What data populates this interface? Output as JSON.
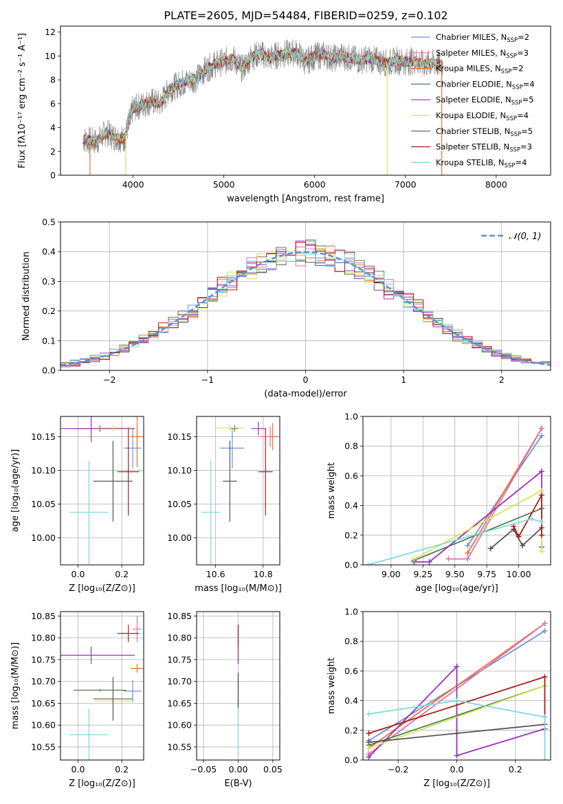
{
  "figure": {
    "title": "PLATE=2605, MJD=54484, FIBERID=0259, z=0.102"
  },
  "colors": {
    "Chabrier MILES": "#6f8fdc",
    "Salpeter MILES": "#e06fb0",
    "Kroupa MILES": "#e8722b",
    "Chabrier ELODIE": "#4f7f4f",
    "Salpeter ELODIE": "#9b30b8",
    "Kroupa ELODIE": "#d7e35a",
    "Chabrier STELIB": "#555555",
    "Salpeter STELIB": "#b01a1a",
    "Kroupa STELIB": "#7fd9dc"
  },
  "chart_data": [
    {
      "id": "spectrum",
      "type": "line",
      "xlabel": "wavelength [Angstrom, rest frame]",
      "ylabel": "Flux [fλ10⁻¹⁷ erg cm⁻² s⁻¹ A⁻¹]",
      "xlim": [
        3200,
        8600
      ],
      "ylim": [
        0,
        12.5
      ],
      "xticks": [
        4000,
        5000,
        6000,
        7000,
        8000
      ],
      "yticks": [
        0,
        2,
        4,
        6,
        8,
        10,
        12
      ],
      "legend_position": "right",
      "legend": [
        {
          "label": "Chabrier MILES, N",
          "sub": "SSP",
          "suffix": "=2",
          "color": "Chabrier MILES"
        },
        {
          "label": "Salpeter MILES, N",
          "sub": "SSP",
          "suffix": "=3",
          "color": "Salpeter MILES"
        },
        {
          "label": "Kroupa MILES, N",
          "sub": "SSP",
          "suffix": "=2",
          "color": "Kroupa MILES"
        },
        {
          "label": "Chabrier ELODIE, N",
          "sub": "SSP",
          "suffix": "=4",
          "color": "Chabrier ELODIE"
        },
        {
          "label": "Salpeter ELODIE, N",
          "sub": "SSP",
          "suffix": "=5",
          "color": "Salpeter ELODIE"
        },
        {
          "label": "Kroupa ELODIE, N",
          "sub": "SSP",
          "suffix": "=4",
          "color": "Kroupa ELODIE"
        },
        {
          "label": "Chabrier STELIB, N",
          "sub": "SSP",
          "suffix": "=5",
          "color": "Chabrier STELIB"
        },
        {
          "label": "Salpeter STELIB, N",
          "sub": "SSP",
          "suffix": "=3",
          "color": "Salpeter STELIB"
        },
        {
          "label": "Kroupa STELIB, N",
          "sub": "SSP",
          "suffix": "=4",
          "color": "Kroupa STELIB"
        }
      ],
      "continuum": [
        [
          3450,
          3.0
        ],
        [
          3600,
          2.8
        ],
        [
          3700,
          3.6
        ],
        [
          3800,
          3.2
        ],
        [
          3900,
          3.0
        ],
        [
          3950,
          4.3
        ],
        [
          4000,
          5.6
        ],
        [
          4100,
          5.9
        ],
        [
          4200,
          6.2
        ],
        [
          4300,
          6.0
        ],
        [
          4400,
          7.2
        ],
        [
          4500,
          7.6
        ],
        [
          4600,
          7.9
        ],
        [
          4700,
          8.1
        ],
        [
          4800,
          8.9
        ],
        [
          4900,
          9.3
        ],
        [
          5000,
          9.5
        ],
        [
          5100,
          9.8
        ],
        [
          5200,
          8.9
        ],
        [
          5300,
          9.9
        ],
        [
          5400,
          10.2
        ],
        [
          5500,
          9.8
        ],
        [
          5600,
          10.1
        ],
        [
          5700,
          10.2
        ],
        [
          5800,
          10.3
        ],
        [
          5900,
          9.5
        ],
        [
          6000,
          10.0
        ],
        [
          6100,
          10.1
        ],
        [
          6200,
          9.8
        ],
        [
          6300,
          10.0
        ],
        [
          6400,
          9.8
        ],
        [
          6500,
          9.6
        ],
        [
          6600,
          9.8
        ],
        [
          6700,
          9.6
        ],
        [
          6800,
          9.4
        ],
        [
          6900,
          9.6
        ],
        [
          7000,
          9.5
        ],
        [
          7100,
          9.6
        ],
        [
          7200,
          9.3
        ],
        [
          7300,
          9.4
        ],
        [
          7410,
          9.2
        ]
      ],
      "drops": [
        {
          "x": 3525,
          "color": "Kroupa MILES"
        },
        {
          "x": 3920,
          "color": "Kroupa ELODIE"
        },
        {
          "x": 6800,
          "color": "Kroupa ELODIE"
        },
        {
          "x": 7400,
          "color": "Kroupa MILES"
        }
      ]
    },
    {
      "id": "residuals",
      "type": "line",
      "xlabel": "(data-model)/error",
      "ylabel": "Normed distribution",
      "xlim": [
        -2.5,
        2.5
      ],
      "ylim": [
        0,
        0.5
      ],
      "xticks": [
        -2,
        -1,
        0,
        1,
        2
      ],
      "yticks": [
        0.0,
        0.1,
        0.2,
        0.3,
        0.4,
        0.5
      ],
      "grid": true,
      "legend_position": "top-right",
      "legend": [
        {
          "label": "𝒩(0, 1)",
          "color": "#5b8fd6",
          "dash": true
        }
      ]
    },
    {
      "id": "age-vs-Z",
      "type": "scatter",
      "xlabel": "Z [log₁₀(Z/Z⊙)]",
      "ylabel": "age  [log₁₀(age/yr)]",
      "xlim": [
        -0.08,
        0.3
      ],
      "ylim": [
        9.96,
        10.18
      ],
      "xticks": [
        0.0,
        0.2
      ],
      "yticks": [
        10.0,
        10.05,
        10.1,
        10.15
      ],
      "grid": true,
      "points": [
        {
          "s": "Chabrier MILES",
          "x": 0.25,
          "y": 10.133,
          "xe": 0.04,
          "ye": 0.03
        },
        {
          "s": "Salpeter MILES",
          "x": 0.27,
          "y": 10.15,
          "xe": 0.02,
          "ye": 0.015
        },
        {
          "s": "Kroupa MILES",
          "x": 0.27,
          "y": 10.15,
          "xe": 0.03,
          "ye": 0.045
        },
        {
          "s": "Chabrier ELODIE",
          "x": 0.1,
          "y": 10.162,
          "xe": 0.12,
          "ye": 0.005
        },
        {
          "s": "Salpeter ELODIE",
          "x": 0.06,
          "y": 10.162,
          "xe": 0.2,
          "ye": 0.02
        },
        {
          "s": "Kroupa ELODIE",
          "x": 0.16,
          "y": 10.163,
          "xe": 0.085,
          "ye": 0.005
        },
        {
          "s": "Chabrier STELIB",
          "x": 0.16,
          "y": 10.084,
          "xe": 0.09,
          "ye": 0.06
        },
        {
          "s": "Salpeter STELIB",
          "x": 0.23,
          "y": 10.098,
          "xe": 0.05,
          "ye": 0.065
        },
        {
          "s": "Kroupa STELIB",
          "x": 0.05,
          "y": 10.038,
          "xe": 0.09,
          "ye": 0.077
        }
      ]
    },
    {
      "id": "age-vs-mass",
      "type": "scatter",
      "xlabel": "mass [log₁₀(M/M⊙)]",
      "xlim": [
        10.52,
        10.87
      ],
      "ylim": [
        9.96,
        10.18
      ],
      "xticks": [
        10.6,
        10.8
      ],
      "yticks": [
        10.0,
        10.05,
        10.1,
        10.15
      ],
      "grid": true,
      "points": [
        {
          "s": "Chabrier MILES",
          "x": 10.67,
          "y": 10.133,
          "xe": 0.05,
          "ye": 0.03
        },
        {
          "s": "Salpeter MILES",
          "x": 10.83,
          "y": 10.15,
          "xe": 0.05,
          "ye": 0.015
        },
        {
          "s": "Kroupa MILES",
          "x": 10.84,
          "y": 10.15,
          "xe": 0.02,
          "ye": 0.02
        },
        {
          "s": "Chabrier ELODIE",
          "x": 10.68,
          "y": 10.162,
          "xe": 0.015,
          "ye": 0.005
        },
        {
          "s": "Salpeter ELODIE",
          "x": 10.78,
          "y": 10.162,
          "xe": 0.03,
          "ye": 0.01
        },
        {
          "s": "Kroupa ELODIE",
          "x": 10.66,
          "y": 10.163,
          "xe": 0.06,
          "ye": 0.005
        },
        {
          "s": "Chabrier STELIB",
          "x": 10.66,
          "y": 10.084,
          "xe": 0.03,
          "ye": 0.06
        },
        {
          "s": "Salpeter STELIB",
          "x": 10.81,
          "y": 10.098,
          "xe": 0.03,
          "ye": 0.065
        },
        {
          "s": "Kroupa STELIB",
          "x": 10.58,
          "y": 10.038,
          "xe": 0.04,
          "ye": 0.077
        }
      ]
    },
    {
      "id": "mass-vs-Z",
      "type": "scatter",
      "xlabel": "Z [log₁₀(Z/Z⊙)]",
      "ylabel": "mass [log₁₀(M/M⊙)]",
      "xlim": [
        -0.08,
        0.3
      ],
      "ylim": [
        10.52,
        10.86
      ],
      "xticks": [
        0.0,
        0.2
      ],
      "yticks": [
        10.55,
        10.6,
        10.65,
        10.7,
        10.75,
        10.8,
        10.85
      ],
      "grid": true,
      "points": [
        {
          "s": "Chabrier MILES",
          "x": 0.25,
          "y": 10.678,
          "xe": 0.04,
          "ye": 0.025
        },
        {
          "s": "Salpeter MILES",
          "x": 0.27,
          "y": 10.82,
          "xe": 0.02,
          "ye": 0.03
        },
        {
          "s": "Kroupa MILES",
          "x": 0.27,
          "y": 10.73,
          "xe": 0.03,
          "ye": 0.01
        },
        {
          "s": "Chabrier ELODIE",
          "x": 0.1,
          "y": 10.68,
          "xe": 0.12,
          "ye": 0.003
        },
        {
          "s": "Salpeter ELODIE",
          "x": 0.06,
          "y": 10.76,
          "xe": 0.2,
          "ye": 0.02
        },
        {
          "s": "Kroupa ELODIE",
          "x": 0.16,
          "y": 10.655,
          "xe": 0.085,
          "ye": 0.005
        },
        {
          "s": "Chabrier STELIB",
          "x": 0.16,
          "y": 10.66,
          "xe": 0.09,
          "ye": 0.05
        },
        {
          "s": "Salpeter STELIB",
          "x": 0.23,
          "y": 10.81,
          "xe": 0.05,
          "ye": 0.02
        },
        {
          "s": "Kroupa STELIB",
          "x": 0.05,
          "y": 10.578,
          "xe": 0.09,
          "ye": 0.06
        }
      ]
    },
    {
      "id": "mass-vs-ebv",
      "type": "scatter",
      "xlabel": "E(B-V)",
      "xlim": [
        -0.06,
        0.06
      ],
      "ylim": [
        10.52,
        10.86
      ],
      "xticks": [
        -0.05,
        0.0,
        0.05
      ],
      "yticks": [
        10.55,
        10.6,
        10.65,
        10.7,
        10.75,
        10.8,
        10.85
      ],
      "grid": true,
      "segments": [
        {
          "s": "Salpeter STELIB",
          "y0": 10.78,
          "y1": 10.83
        },
        {
          "s": "Salpeter ELODIE",
          "y0": 10.74,
          "y1": 10.78
        },
        {
          "s": "Kroupa ELODIE",
          "y0": 10.63,
          "y1": 10.7
        },
        {
          "s": "Chabrier STELIB",
          "y0": 10.64,
          "y1": 10.72
        },
        {
          "s": "Kroupa STELIB",
          "y0": 10.53,
          "y1": 10.64
        }
      ]
    },
    {
      "id": "weight-vs-age",
      "type": "line",
      "xlabel": "age  [log₁₀(age/yr)]",
      "ylabel": "mass weight",
      "xlim": [
        8.78,
        10.25
      ],
      "ylim": [
        0,
        1.0
      ],
      "xticks": [
        9.0,
        9.25,
        9.5,
        9.75,
        10.0
      ],
      "yticks": [
        0.0,
        0.2,
        0.4,
        0.6,
        0.8,
        1.0
      ],
      "grid": true,
      "series": [
        {
          "s": "Chabrier MILES",
          "pts": [
            [
              9.6,
              0.13
            ],
            [
              10.18,
              0.87
            ]
          ]
        },
        {
          "s": "Kroupa MILES",
          "pts": [
            [
              9.6,
              0.08
            ],
            [
              10.18,
              0.92
            ]
          ]
        },
        {
          "s": "Salpeter MILES",
          "pts": [
            [
              9.45,
              0.04
            ],
            [
              9.6,
              0.04
            ],
            [
              10.18,
              0.92
            ]
          ]
        },
        {
          "s": "Chabrier ELODIE",
          "pts": [
            [
              9.18,
              0.03
            ],
            [
              10.18,
              0.38
            ]
          ]
        },
        {
          "s": "Salpeter ELODIE",
          "pts": [
            [
              9.18,
              0.02
            ],
            [
              9.3,
              0.02
            ],
            [
              10.18,
              0.63
            ],
            [
              10.18,
              0.12
            ]
          ]
        },
        {
          "s": "Kroupa ELODIE",
          "pts": [
            [
              9.18,
              0.04
            ],
            [
              10.18,
              0.5
            ],
            [
              10.18,
              0.09
            ]
          ]
        },
        {
          "s": "Chabrier STELIB",
          "pts": [
            [
              9.78,
              0.11
            ],
            [
              9.96,
              0.24
            ],
            [
              10.03,
              0.13
            ],
            [
              10.18,
              0.25
            ]
          ]
        },
        {
          "s": "Salpeter STELIB",
          "pts": [
            [
              9.96,
              0.26
            ],
            [
              10.0,
              0.19
            ],
            [
              10.18,
              0.47
            ],
            [
              10.18,
              0.2
            ]
          ]
        },
        {
          "s": "Kroupa STELIB",
          "pts": [
            [
              8.82,
              0.0
            ],
            [
              10.1,
              0.31
            ],
            [
              10.18,
              0.29
            ]
          ]
        }
      ]
    },
    {
      "id": "weight-vs-Z",
      "type": "line",
      "xlabel": "Z [log₁₀(Z/Z⊙)]",
      "ylabel": "mass weight",
      "xlim": [
        -0.32,
        0.32
      ],
      "ylim": [
        0,
        1.0
      ],
      "xticks": [
        -0.2,
        0.0,
        0.2
      ],
      "yticks": [
        0.0,
        0.2,
        0.4,
        0.6,
        0.8,
        1.0
      ],
      "grid": true,
      "series": [
        {
          "s": "Chabrier MILES",
          "pts": [
            [
              -0.3,
              0.13
            ],
            [
              0.3,
              0.87
            ]
          ]
        },
        {
          "s": "Kroupa MILES",
          "pts": [
            [
              -0.3,
              0.08
            ],
            [
              0.3,
              0.92
            ]
          ]
        },
        {
          "s": "Salpeter MILES",
          "pts": [
            [
              -0.3,
              0.04
            ],
            [
              0.3,
              0.92
            ]
          ]
        },
        {
          "s": "Chabrier ELODIE",
          "pts": [
            [
              -0.3,
              0.1
            ],
            [
              0.3,
              0.5
            ]
          ]
        },
        {
          "s": "Salpeter ELODIE",
          "pts": [
            [
              -0.3,
              0.02
            ],
            [
              0.0,
              0.63
            ],
            [
              0.0,
              0.03
            ],
            [
              0.3,
              0.21
            ]
          ]
        },
        {
          "s": "Kroupa ELODIE",
          "pts": [
            [
              -0.3,
              0.08
            ],
            [
              0.3,
              0.5
            ]
          ]
        },
        {
          "s": "Chabrier STELIB",
          "pts": [
            [
              -0.3,
              0.12
            ],
            [
              0.0,
              0.18
            ],
            [
              0.3,
              0.24
            ]
          ]
        },
        {
          "s": "Salpeter STELIB",
          "pts": [
            [
              -0.3,
              0.18
            ],
            [
              0.3,
              0.56
            ],
            [
              0.3,
              0.29
            ]
          ]
        },
        {
          "s": "Kroupa STELIB",
          "pts": [
            [
              -0.3,
              0.31
            ],
            [
              0.0,
              0.4
            ],
            [
              0.3,
              0.29
            ],
            [
              0.3,
              0.0
            ]
          ]
        }
      ]
    }
  ]
}
